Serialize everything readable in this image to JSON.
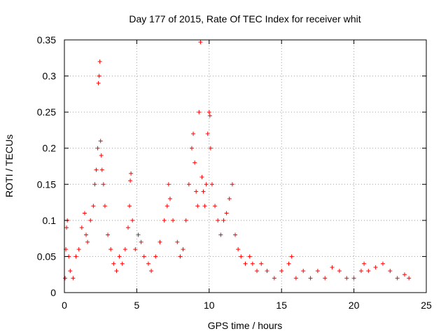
{
  "chart_data": {
    "type": "scatter",
    "title": "Day 177 of 2015, Rate Of TEC Index for receiver whit",
    "xlabel": "GPS time / hours",
    "ylabel": "ROTI / TECUs",
    "xlim": [
      0,
      25
    ],
    "ylim": [
      0,
      0.35
    ],
    "x_ticks": [
      0,
      5,
      10,
      15,
      20,
      25
    ],
    "x_tick_labels": [
      "0",
      "5",
      "10",
      "15",
      "20",
      "25"
    ],
    "y_ticks": [
      0,
      0.05,
      0.1,
      0.15,
      0.2,
      0.25,
      0.3,
      0.35
    ],
    "y_tick_labels": [
      "0",
      "0.05",
      "0.1",
      "0.15",
      "0.2",
      "0.25",
      "0.3",
      "0.35"
    ],
    "grid": true,
    "marker": "+",
    "series": [
      {
        "name": "ROTI",
        "color": "#ff0000",
        "points": [
          [
            0.05,
            0.02
          ],
          [
            0.1,
            0.06
          ],
          [
            0.15,
            0.09
          ],
          [
            0.2,
            0.1
          ],
          [
            0.3,
            0.05
          ],
          [
            0.4,
            0.03
          ],
          [
            0.6,
            0.02
          ],
          [
            0.8,
            0.05
          ],
          [
            1.0,
            0.06
          ],
          [
            1.2,
            0.09
          ],
          [
            1.4,
            0.11
          ],
          [
            1.5,
            0.08
          ],
          [
            1.6,
            0.07
          ],
          [
            1.8,
            0.1
          ],
          [
            2.0,
            0.12
          ],
          [
            2.1,
            0.15
          ],
          [
            2.2,
            0.17
          ],
          [
            2.3,
            0.2
          ],
          [
            2.35,
            0.29
          ],
          [
            2.4,
            0.3
          ],
          [
            2.45,
            0.32
          ],
          [
            2.5,
            0.21
          ],
          [
            2.55,
            0.19
          ],
          [
            2.6,
            0.17
          ],
          [
            2.7,
            0.15
          ],
          [
            2.8,
            0.12
          ],
          [
            3.0,
            0.08
          ],
          [
            3.2,
            0.06
          ],
          [
            3.4,
            0.04
          ],
          [
            3.6,
            0.03
          ],
          [
            3.8,
            0.05
          ],
          [
            4.0,
            0.04
          ],
          [
            4.2,
            0.06
          ],
          [
            4.4,
            0.09
          ],
          [
            4.5,
            0.12
          ],
          [
            4.55,
            0.155
          ],
          [
            4.6,
            0.165
          ],
          [
            4.7,
            0.1
          ],
          [
            4.9,
            0.06
          ],
          [
            5.1,
            0.08
          ],
          [
            5.3,
            0.07
          ],
          [
            5.5,
            0.05
          ],
          [
            5.8,
            0.04
          ],
          [
            6.0,
            0.03
          ],
          [
            6.3,
            0.05
          ],
          [
            6.6,
            0.07
          ],
          [
            6.9,
            0.1
          ],
          [
            7.1,
            0.12
          ],
          [
            7.2,
            0.15
          ],
          [
            7.3,
            0.13
          ],
          [
            7.5,
            0.1
          ],
          [
            7.8,
            0.07
          ],
          [
            8.0,
            0.05
          ],
          [
            8.2,
            0.06
          ],
          [
            8.4,
            0.1
          ],
          [
            8.6,
            0.15
          ],
          [
            8.8,
            0.2
          ],
          [
            8.9,
            0.22
          ],
          [
            9.0,
            0.18
          ],
          [
            9.1,
            0.14
          ],
          [
            9.2,
            0.12
          ],
          [
            9.3,
            0.25
          ],
          [
            9.4,
            0.347
          ],
          [
            9.5,
            0.16
          ],
          [
            9.6,
            0.14
          ],
          [
            9.7,
            0.12
          ],
          [
            9.8,
            0.15
          ],
          [
            9.9,
            0.22
          ],
          [
            10.0,
            0.25
          ],
          [
            10.05,
            0.245
          ],
          [
            10.1,
            0.2
          ],
          [
            10.2,
            0.15
          ],
          [
            10.4,
            0.12
          ],
          [
            10.6,
            0.1
          ],
          [
            10.8,
            0.08
          ],
          [
            11.0,
            0.1
          ],
          [
            11.2,
            0.11
          ],
          [
            11.4,
            0.13
          ],
          [
            11.6,
            0.15
          ],
          [
            11.8,
            0.08
          ],
          [
            12.0,
            0.06
          ],
          [
            12.2,
            0.05
          ],
          [
            12.5,
            0.04
          ],
          [
            12.8,
            0.05
          ],
          [
            13.0,
            0.04
          ],
          [
            13.3,
            0.03
          ],
          [
            13.6,
            0.04
          ],
          [
            14.0,
            0.03
          ],
          [
            14.5,
            0.02
          ],
          [
            15.0,
            0.03
          ],
          [
            15.5,
            0.04
          ],
          [
            15.7,
            0.05
          ],
          [
            16.0,
            0.02
          ],
          [
            16.5,
            0.03
          ],
          [
            17.0,
            0.02
          ],
          [
            17.5,
            0.03
          ],
          [
            18.0,
            0.02
          ],
          [
            18.5,
            0.035
          ],
          [
            19.0,
            0.03
          ],
          [
            19.5,
            0.02
          ],
          [
            20.0,
            0.02
          ],
          [
            20.5,
            0.03
          ],
          [
            20.7,
            0.04
          ],
          [
            21.0,
            0.03
          ],
          [
            21.5,
            0.035
          ],
          [
            22.0,
            0.04
          ],
          [
            22.5,
            0.03
          ],
          [
            23.0,
            0.02
          ],
          [
            23.5,
            0.025
          ],
          [
            23.8,
            0.02
          ]
        ]
      }
    ]
  }
}
